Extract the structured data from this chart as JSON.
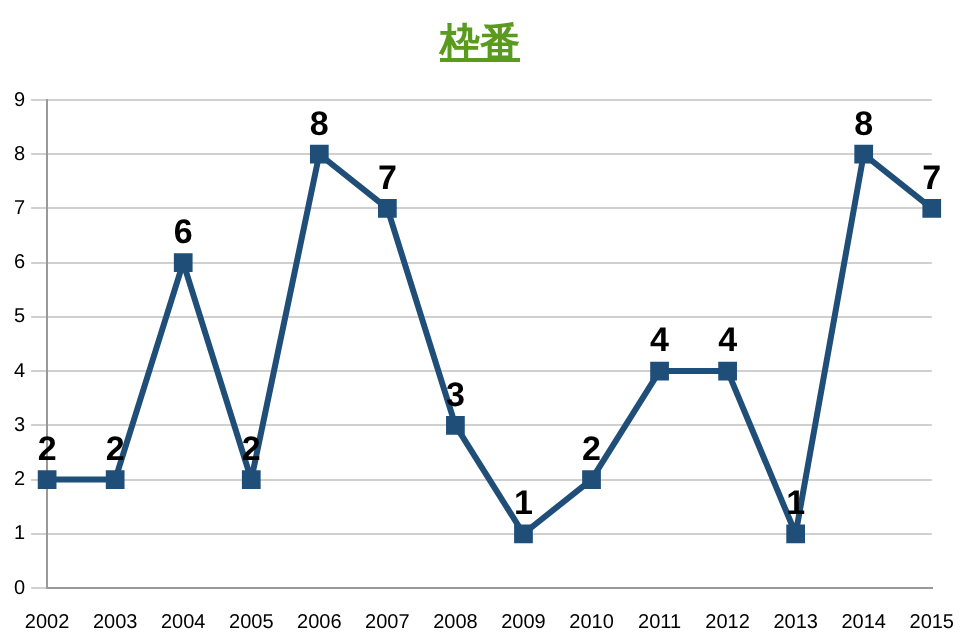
{
  "chart_data": {
    "type": "line",
    "title": "枠番",
    "categories": [
      "2002",
      "2003",
      "2004",
      "2005",
      "2006",
      "2007",
      "2008",
      "2009",
      "2010",
      "2011",
      "2012",
      "2013",
      "2014",
      "2015"
    ],
    "values": [
      2,
      2,
      6,
      2,
      8,
      7,
      3,
      1,
      2,
      4,
      4,
      1,
      8,
      7
    ],
    "color": "#1f4e79",
    "marker": "square",
    "line_style": "solid",
    "ylim": [
      0,
      9
    ],
    "yticks": [
      0,
      1,
      2,
      3,
      4,
      5,
      6,
      7,
      8,
      9
    ],
    "grid": "y",
    "data_labels": true,
    "legend": false
  }
}
